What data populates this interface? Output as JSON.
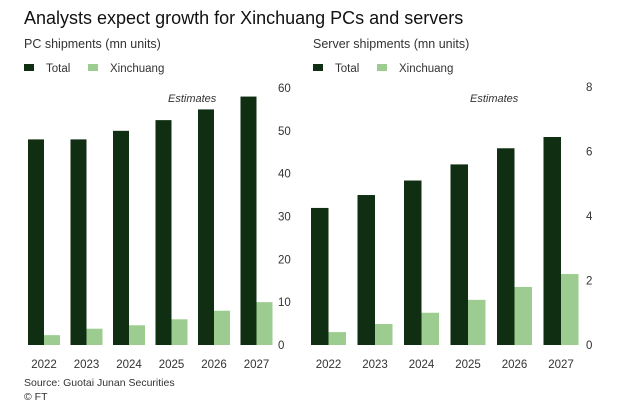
{
  "title": "Analysts expect growth for Xinchuang PCs and servers",
  "source": "Source: Guotai Junan Securities",
  "credit": "© FT",
  "colors": {
    "total": "#0f2e12",
    "xinchuang": "#9ccc8f"
  },
  "chart_data": [
    {
      "type": "bar",
      "title": "PC shipments (mn units)",
      "categories": [
        "2022",
        "2023",
        "2024",
        "2025",
        "2026",
        "2027"
      ],
      "series": [
        {
          "name": "Total",
          "values": [
            48,
            48,
            50,
            52.5,
            55,
            58
          ]
        },
        {
          "name": "Xinchuang",
          "values": [
            2.3,
            3.8,
            4.6,
            6,
            8,
            10
          ]
        }
      ],
      "yticks": [
        "0",
        "10",
        "20",
        "30",
        "40",
        "50",
        "60"
      ],
      "ylim": [
        0,
        60
      ],
      "annotation": "Estimates",
      "legend": "top-left",
      "axis_side": "right"
    },
    {
      "type": "bar",
      "title": "Server shipments (mn units)",
      "categories": [
        "2022",
        "2023",
        "2024",
        "2025",
        "2026",
        "2027"
      ],
      "series": [
        {
          "name": "Total",
          "values": [
            4.25,
            4.65,
            5.1,
            5.6,
            6.1,
            6.45
          ]
        },
        {
          "name": "Xinchuang",
          "values": [
            0.4,
            0.65,
            1.0,
            1.4,
            1.8,
            2.2
          ]
        }
      ],
      "yticks": [
        "0",
        "2",
        "4",
        "6",
        "8"
      ],
      "ylim": [
        0,
        8
      ],
      "annotation": "Estimates",
      "legend": "top-left",
      "axis_side": "right"
    }
  ]
}
